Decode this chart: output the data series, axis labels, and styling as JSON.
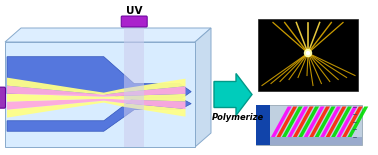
{
  "bg_color": "#ffffff",
  "uv_label": "UV",
  "polymerize_label": "Polymerize",
  "chip_box_edge": "#88aacc",
  "chip_fill": "#ddeeff",
  "blue_arrow_color": "#5577dd",
  "blue_arrow_edge": "#3355bb",
  "purple_inlet_color": "#9933bb",
  "uv_beam_color": "#ccccee",
  "uv_source_color": "#aa22cc",
  "stripe_colors_wide": [
    "#ffff88",
    "#ffaadd",
    "#ffff88",
    "#ffaadd",
    "#ffff88"
  ],
  "stripe_colors_narrow": [
    "#dddd88",
    "#ddaacc",
    "#dddd88",
    "#ddaacc",
    "#dddd88"
  ],
  "cyan_arrow_color": "#00ccbb",
  "cyan_arrow_edge": "#009988",
  "dark_bg": "#000000",
  "gold_color": "#ddaa00",
  "gold_bright": "#ffdd44",
  "barcode_colors": [
    "#ff00ff",
    "#ff2200",
    "#00dd00",
    "#ff00ff",
    "#ff2200",
    "#00dd00"
  ],
  "bot_bg_color": "#bbccdd",
  "bot_side_color": "#2244aa",
  "bot_axis_color": "#334466"
}
